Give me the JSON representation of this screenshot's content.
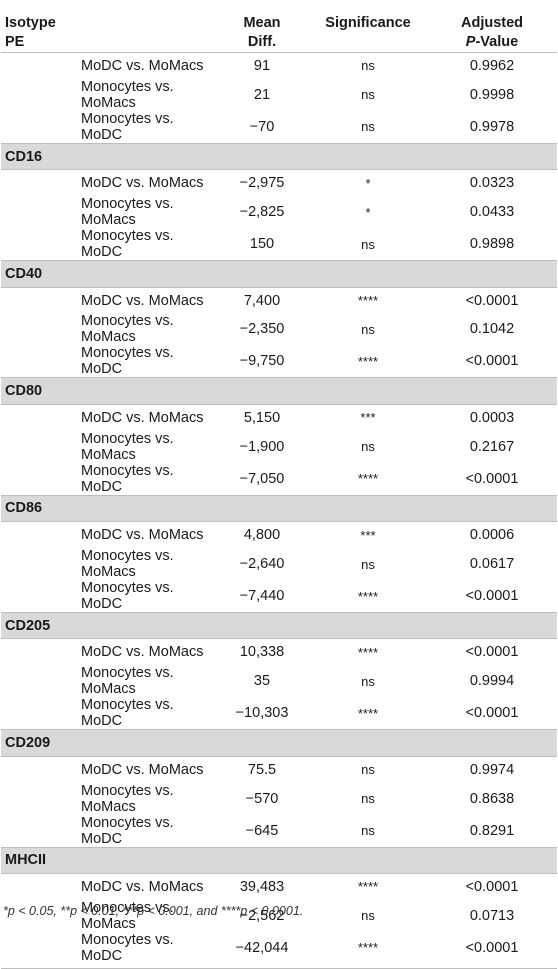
{
  "header": {
    "col1_line1": "Isotype",
    "col1_line2": "PE",
    "mean_line1": "Mean",
    "mean_line2": "Diff.",
    "significance": "Significance",
    "p_line1": "Adjusted",
    "p_line2_italic": "P",
    "p_line2_rest": "-Value"
  },
  "sections": [
    {
      "marker": "",
      "rows": [
        {
          "comparison": "MoDC vs. MoMacs",
          "mean_diff": "91",
          "significance": "ns",
          "p_value": "0.9962"
        },
        {
          "comparison": "Monocytes vs. MoMacs",
          "mean_diff": "21",
          "significance": "ns",
          "p_value": "0.9998"
        },
        {
          "comparison": "Monocytes vs. MoDC",
          "mean_diff": "−70",
          "significance": "ns",
          "p_value": "0.9978"
        }
      ]
    },
    {
      "marker": "CD16",
      "rows": [
        {
          "comparison": "MoDC vs. MoMacs",
          "mean_diff": "−2,975",
          "significance": "*",
          "p_value": "0.0323"
        },
        {
          "comparison": "Monocytes vs. MoMacs",
          "mean_diff": "−2,825",
          "significance": "*",
          "p_value": "0.0433"
        },
        {
          "comparison": "Monocytes vs. MoDC",
          "mean_diff": "150",
          "significance": "ns",
          "p_value": "0.9898"
        }
      ]
    },
    {
      "marker": "CD40",
      "rows": [
        {
          "comparison": "MoDC vs. MoMacs",
          "mean_diff": "7,400",
          "significance": "****",
          "p_value": "<0.0001"
        },
        {
          "comparison": "Monocytes vs. MoMacs",
          "mean_diff": "−2,350",
          "significance": "ns",
          "p_value": "0.1042"
        },
        {
          "comparison": "Monocytes vs. MoDC",
          "mean_diff": "−9,750",
          "significance": "****",
          "p_value": "<0.0001"
        }
      ]
    },
    {
      "marker": "CD80",
      "rows": [
        {
          "comparison": "MoDC vs. MoMacs",
          "mean_diff": "5,150",
          "significance": "***",
          "p_value": "0.0003"
        },
        {
          "comparison": "Monocytes vs. MoMacs",
          "mean_diff": "−1,900",
          "significance": "ns",
          "p_value": "0.2167"
        },
        {
          "comparison": "Monocytes vs. MoDC",
          "mean_diff": "−7,050",
          "significance": "****",
          "p_value": "<0.0001"
        }
      ]
    },
    {
      "marker": "CD86",
      "rows": [
        {
          "comparison": "MoDC vs. MoMacs",
          "mean_diff": "4,800",
          "significance": "***",
          "p_value": "0.0006"
        },
        {
          "comparison": "Monocytes vs. MoMacs",
          "mean_diff": "−2,640",
          "significance": "ns",
          "p_value": "0.0617"
        },
        {
          "comparison": "Monocytes vs. MoDC",
          "mean_diff": "−7,440",
          "significance": "****",
          "p_value": "<0.0001"
        }
      ]
    },
    {
      "marker": "CD205",
      "rows": [
        {
          "comparison": "MoDC vs. MoMacs",
          "mean_diff": "10,338",
          "significance": "****",
          "p_value": "<0.0001"
        },
        {
          "comparison": "Monocytes vs. MoMacs",
          "mean_diff": "35",
          "significance": "ns",
          "p_value": "0.9994"
        },
        {
          "comparison": "Monocytes vs. MoDC",
          "mean_diff": "−10,303",
          "significance": "****",
          "p_value": "<0.0001"
        }
      ]
    },
    {
      "marker": "CD209",
      "rows": [
        {
          "comparison": "MoDC vs. MoMacs",
          "mean_diff": "75.5",
          "significance": "ns",
          "p_value": "0.9974"
        },
        {
          "comparison": "Monocytes vs. MoMacs",
          "mean_diff": "−570",
          "significance": "ns",
          "p_value": "0.8638"
        },
        {
          "comparison": "Monocytes vs. MoDC",
          "mean_diff": "−645",
          "significance": "ns",
          "p_value": "0.8291"
        }
      ]
    },
    {
      "marker": "MHCII",
      "rows": [
        {
          "comparison": "MoDC vs. MoMacs",
          "mean_diff": "39,483",
          "significance": "****",
          "p_value": "<0.0001"
        },
        {
          "comparison": "Monocytes vs. MoMacs",
          "mean_diff": "−2,562",
          "significance": "ns",
          "p_value": "0.0713"
        },
        {
          "comparison": "Monocytes vs. MoDC",
          "mean_diff": "−42,044",
          "significance": "****",
          "p_value": "<0.0001"
        }
      ]
    }
  ],
  "footnote": "*p < 0.05, **p < 0.01, ***p < 0.001, and ****p < 0.0001.",
  "colors": {
    "section_band": "#d9d9d9",
    "rule": "#bdbdbd",
    "text": "#1a1a1a"
  }
}
